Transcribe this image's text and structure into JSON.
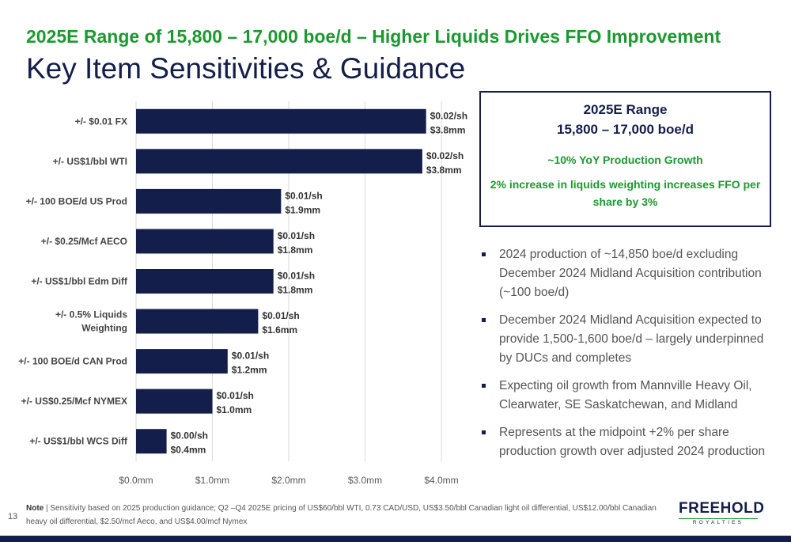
{
  "header": {
    "headline": "2025E Range of 15,800 – 17,000 boe/d – Higher Liquids Drives FFO Improvement",
    "title": "Key Item Sensitivities & Guidance"
  },
  "range_box": {
    "title": "2025E Range",
    "subtitle": "15,800 – 17,000 boe/d",
    "growth": "~10% YoY Production Growth",
    "liquids": "2% increase in liquids weighting increases FFO per share by 3%"
  },
  "bullets": [
    "2024 production of ~14,850 boe/d excluding December 2024 Midland Acquisition contribution (~100 boe/d)",
    "December 2024 Midland Acquisition expected to provide 1,500-1,600  boe/d – largely underpinned by DUCs and completes",
    "Expecting oil growth from Mannville Heavy Oil, Clearwater, SE Saskatchewan, and Midland",
    "Represents at the midpoint +2% per share production growth over adjusted 2024 production"
  ],
  "footer": {
    "page_number": "13",
    "note_label": "Note",
    "note_text": "| Sensitivity based on 2025 production guidance; Q2 –Q4 2025E pricing of US$60/bbl WTI, 0.73 CAD/USD, US$3.50/bbl Canadian light oil differential, US$12.00/bbl Canadian heavy oil differential, $2.50/mcf Aeco, and US$4.00/mcf Nymex",
    "logo_main": "FREEHOLD",
    "logo_sub": "ROYALTIES"
  },
  "colors": {
    "bar": "#141e4a",
    "accent_green": "#1a9a2e",
    "navy": "#141e4a"
  },
  "chart_data": {
    "type": "bar",
    "orientation": "horizontal",
    "categories": [
      "+/- $0.01 FX",
      "+/- US$1/bbl WTI",
      "+/- 100 BOE/d US Prod",
      "+/- $0.25/Mcf AECO",
      "+/- US$1/bbl Edm Diff",
      "+/- 0.5% Liquids Weighting",
      "+/- 100 BOE/d CAN Prod",
      "+/- US$0.25/Mcf NYMEX",
      "+/- US$1/bbl WCS Diff"
    ],
    "category_lines": [
      [
        "+/- $0.01 FX"
      ],
      [
        "+/- US$1/bbl WTI"
      ],
      [
        "+/- 100 BOE/d US Prod"
      ],
      [
        "+/- $0.25/Mcf AECO"
      ],
      [
        "+/- US$1/bbl Edm Diff"
      ],
      [
        "+/- 0.5% Liquids",
        "Weighting"
      ],
      [
        "+/- 100 BOE/d CAN Prod"
      ],
      [
        "+/- US$0.25/Mcf NYMEX"
      ],
      [
        "+/- US$1/bbl WCS Diff"
      ]
    ],
    "values": [
      3.8,
      3.75,
      1.9,
      1.8,
      1.8,
      1.6,
      1.2,
      1.0,
      0.4
    ],
    "label_per_share": [
      "$0.02/sh",
      "$0.02/sh",
      "$0.01/sh",
      "$0.01/sh",
      "$0.01/sh",
      "$0.01/sh",
      "$0.01/sh",
      "$0.01/sh",
      "$0.00/sh"
    ],
    "label_amount": [
      "$3.8mm",
      "$3.8mm",
      "$1.9mm",
      "$1.8mm",
      "$1.8mm",
      "$1.6mm",
      "$1.2mm",
      "$1.0mm",
      "$0.4mm"
    ],
    "xticks": [
      0,
      1,
      2,
      3,
      4
    ],
    "xtick_labels": [
      "$0.0mm",
      "$1.0mm",
      "$2.0mm",
      "$3.0mm",
      "$4.0mm"
    ],
    "xlim": [
      0,
      4.0
    ],
    "grid": true
  }
}
